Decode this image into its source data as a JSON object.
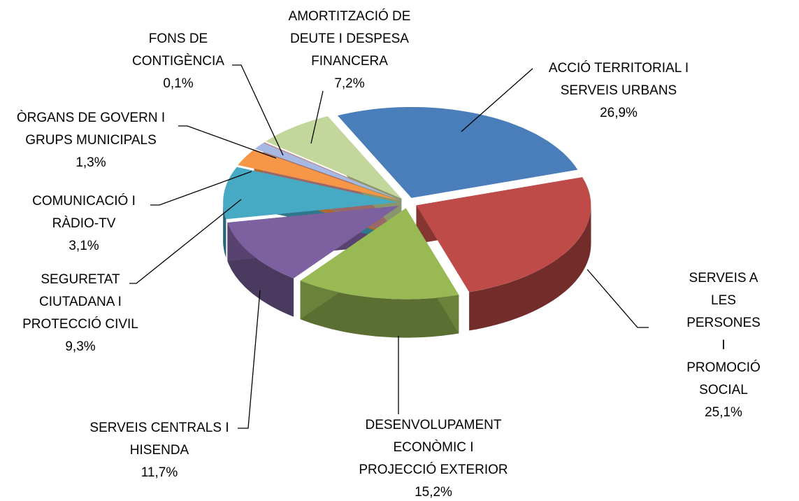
{
  "chart_data": {
    "type": "pie3d",
    "categories": [
      "ACCIÓ TERRITORIAL I\nSERVEIS URBANS",
      "SERVEIS A LES\nPERSONES I\nPROMOCIÓ SOCIAL",
      "DESENVOLUPAMENT\nECONÒMIC I\nPROJECCIÓ EXTERIOR",
      "SERVEIS CENTRALS I\nHISENDA",
      "SEGURETAT\nCIUTADANA I\nPROTECCIÓ CIVIL",
      "COMUNICACIÓ I\nRÀDIO-TV",
      "ÒRGANS DE GOVERN I\nGRUPS MUNICIPALS",
      "FONS DE\nCONTIGÈNCIA",
      "AMORTITZACIÓ DE\nDEUTE I DESPESA\nFINANCERA"
    ],
    "values": [
      26.9,
      25.1,
      15.2,
      11.7,
      9.3,
      3.1,
      1.3,
      0.1,
      7.2
    ],
    "value_labels": [
      "26,9%",
      "25,1%",
      "15,2%",
      "11,7%",
      "9,3%",
      "3,1%",
      "1,3%",
      "0,1%",
      "7,2%"
    ],
    "colors": [
      "#4a7ebb",
      "#be4b48",
      "#98b954",
      "#7d60a0",
      "#46aac5",
      "#f79646",
      "#a7b9e3",
      "#d99694",
      "#c3d69b"
    ]
  }
}
